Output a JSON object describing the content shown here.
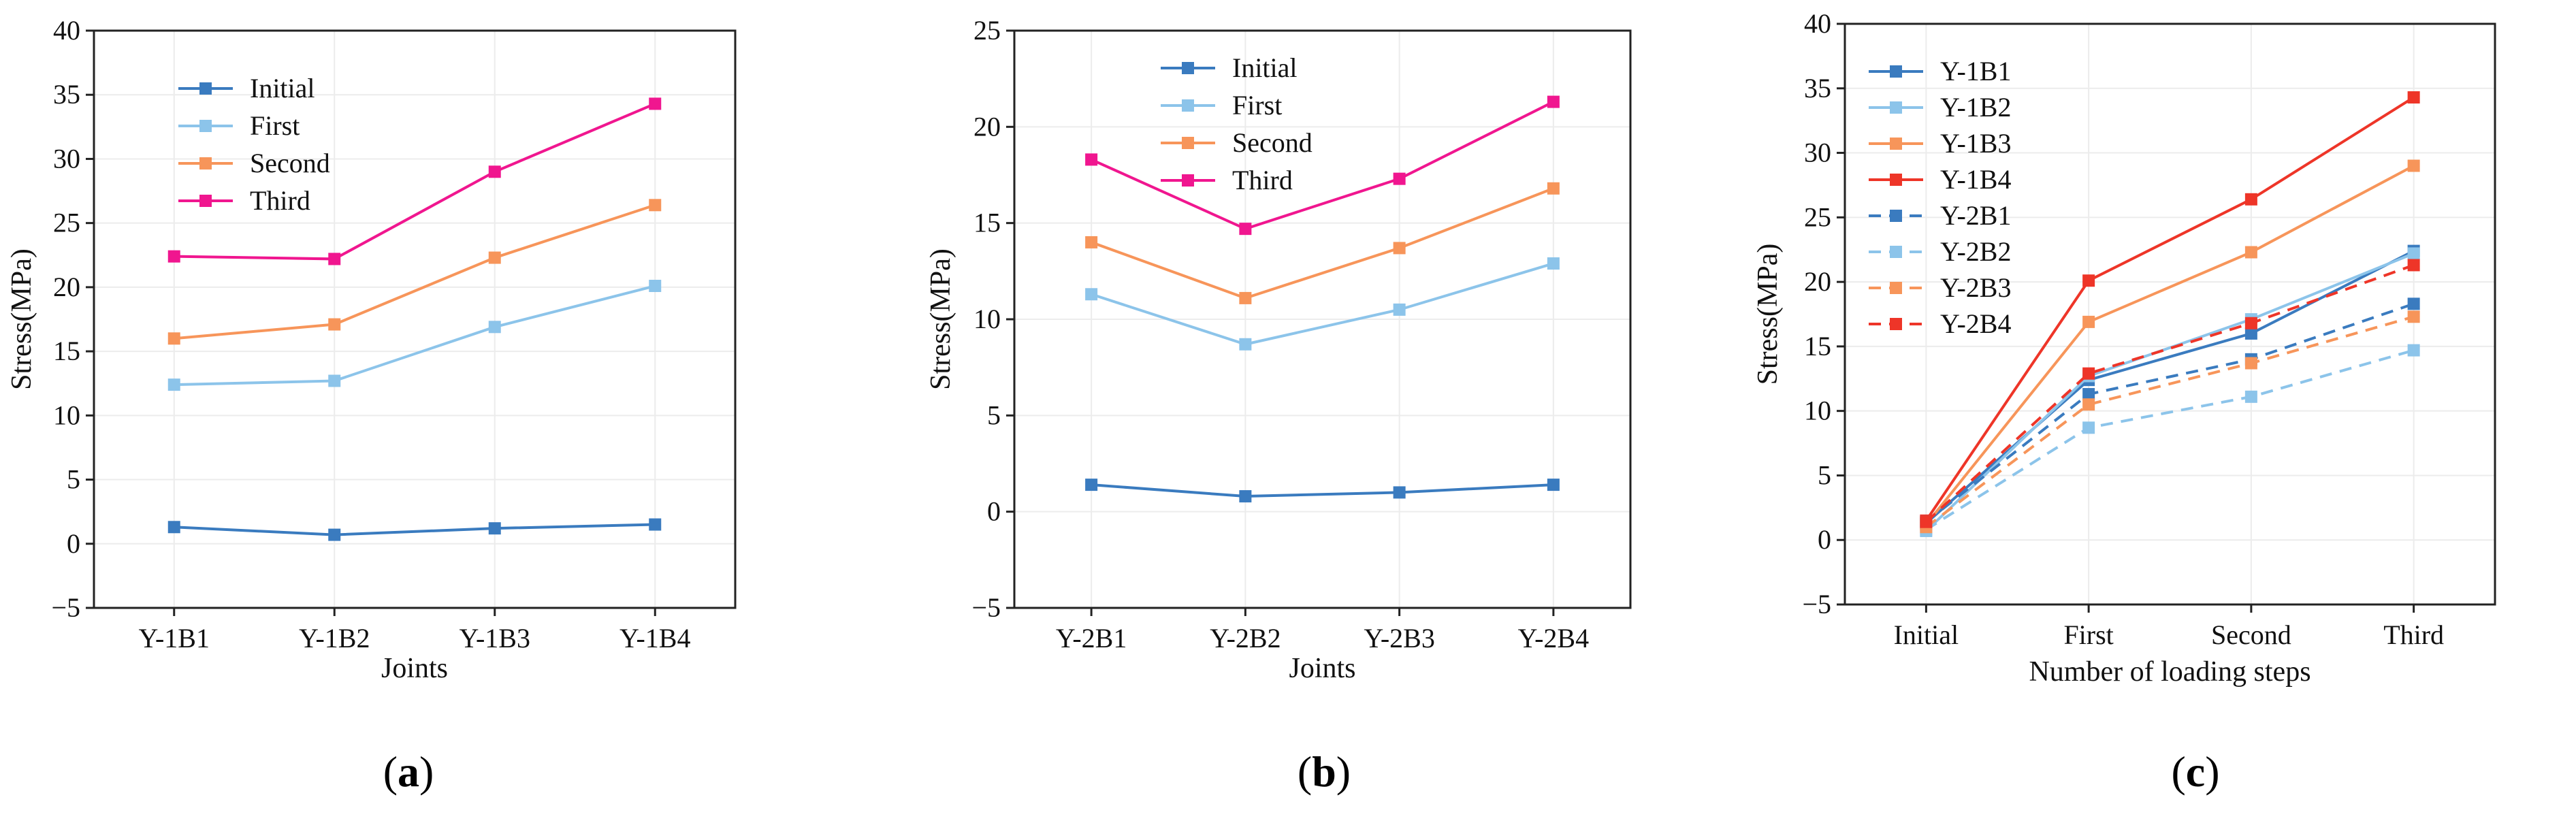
{
  "colors": {
    "Initial": "#3a7bbf",
    "First": "#8cc4ea",
    "Second": "#f7955a",
    "Third": "#f0168f",
    "Y-1B4": "#ee3528",
    "Y-2B4": "#ee3528"
  },
  "chart_data": [
    {
      "type": "line",
      "caption": {
        "open": "(",
        "letter": "a",
        "close": ")"
      },
      "categories": [
        "Y-1B1",
        "Y-1B2",
        "Y-1B3",
        "Y-1B4"
      ],
      "xlabel": "Joints",
      "ylabel": "Stress(MPa)",
      "ylim": [
        -5,
        40
      ],
      "yticks": [
        -5,
        0,
        5,
        10,
        15,
        20,
        25,
        30,
        35,
        40
      ],
      "ytick_labels": [
        "−5",
        "0",
        "5",
        "10",
        "15",
        "20",
        "25",
        "30",
        "35",
        "40"
      ],
      "legend_position": "top-left",
      "series": [
        {
          "name": "Initial",
          "values": [
            1.3,
            0.7,
            1.2,
            1.5
          ],
          "style": "solid"
        },
        {
          "name": "First",
          "values": [
            12.4,
            12.7,
            16.9,
            20.1
          ],
          "style": "solid"
        },
        {
          "name": "Second",
          "values": [
            16.0,
            17.1,
            22.3,
            26.4
          ],
          "style": "solid"
        },
        {
          "name": "Third",
          "values": [
            22.4,
            22.2,
            29.0,
            34.3
          ],
          "style": "solid"
        }
      ]
    },
    {
      "type": "line",
      "caption": {
        "open": "(",
        "letter": "b",
        "close": ")"
      },
      "categories": [
        "Y-2B1",
        "Y-2B2",
        "Y-2B3",
        "Y-2B4"
      ],
      "xlabel": "Joints",
      "ylabel": "Stress(MPa)",
      "ylim": [
        -5,
        25
      ],
      "yticks": [
        -5,
        0,
        5,
        10,
        15,
        20,
        25
      ],
      "ytick_labels": [
        "−5",
        "0",
        "5",
        "10",
        "15",
        "20",
        "25"
      ],
      "legend_position": "top-center",
      "series": [
        {
          "name": "Initial",
          "values": [
            1.4,
            0.8,
            1.0,
            1.4
          ],
          "style": "solid"
        },
        {
          "name": "First",
          "values": [
            11.3,
            8.7,
            10.5,
            12.9
          ],
          "style": "solid"
        },
        {
          "name": "Second",
          "values": [
            14.0,
            11.1,
            13.7,
            16.8
          ],
          "style": "solid"
        },
        {
          "name": "Third",
          "values": [
            18.3,
            14.7,
            17.3,
            21.3
          ],
          "style": "solid"
        }
      ]
    },
    {
      "type": "line",
      "caption": {
        "open": "(",
        "letter": "c",
        "close": ")"
      },
      "categories": [
        "Initial",
        "First",
        "Second",
        "Third"
      ],
      "xlabel": "Number of loading steps",
      "ylabel": "Stress(MPa)",
      "ylim": [
        -5,
        40
      ],
      "yticks": [
        -5,
        0,
        5,
        10,
        15,
        20,
        25,
        30,
        35,
        40
      ],
      "ytick_labels": [
        "−5",
        "0",
        "5",
        "10",
        "15",
        "20",
        "25",
        "30",
        "35",
        "40"
      ],
      "legend_position": "top-left",
      "series": [
        {
          "name": "Y-1B1",
          "values": [
            1.3,
            12.4,
            16.0,
            22.4
          ],
          "style": "solid",
          "color": "#3a7bbf"
        },
        {
          "name": "Y-1B2",
          "values": [
            0.7,
            12.7,
            17.1,
            22.2
          ],
          "style": "solid",
          "color": "#8cc4ea"
        },
        {
          "name": "Y-1B3",
          "values": [
            1.2,
            16.9,
            22.3,
            29.0
          ],
          "style": "solid",
          "color": "#f7955a"
        },
        {
          "name": "Y-1B4",
          "values": [
            1.5,
            20.1,
            26.4,
            34.3
          ],
          "style": "solid",
          "color": "#ee3528"
        },
        {
          "name": "Y-2B1",
          "values": [
            1.4,
            11.3,
            14.0,
            18.3
          ],
          "style": "dashed",
          "color": "#3a7bbf"
        },
        {
          "name": "Y-2B2",
          "values": [
            0.8,
            8.7,
            11.1,
            14.7
          ],
          "style": "dashed",
          "color": "#8cc4ea"
        },
        {
          "name": "Y-2B3",
          "values": [
            1.0,
            10.5,
            13.7,
            17.3
          ],
          "style": "dashed",
          "color": "#f7955a"
        },
        {
          "name": "Y-2B4",
          "values": [
            1.4,
            12.9,
            16.8,
            21.3
          ],
          "style": "dashed",
          "color": "#ee3528"
        }
      ]
    }
  ]
}
